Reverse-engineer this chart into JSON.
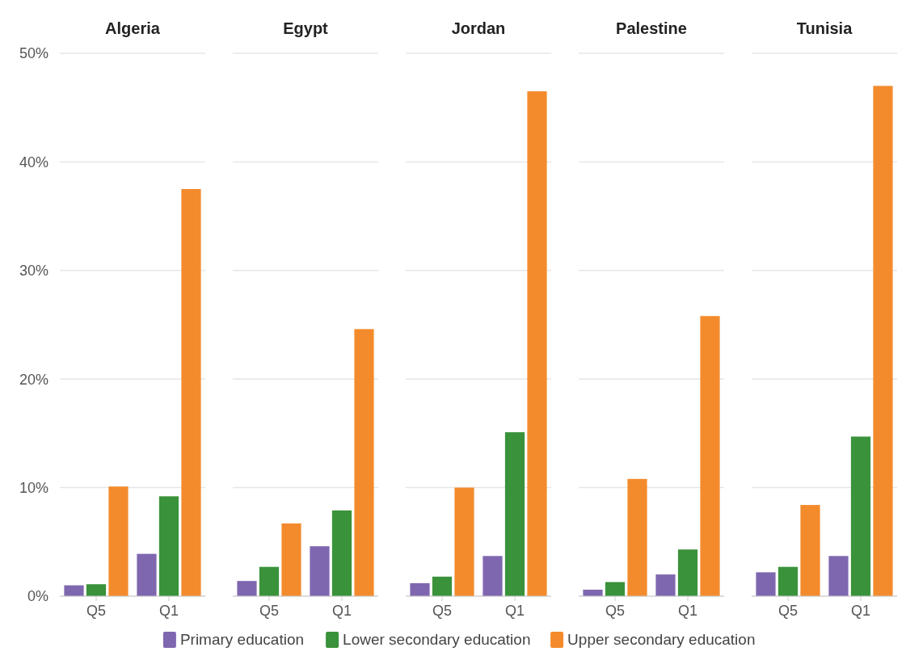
{
  "chart_data": [
    {
      "type": "bar",
      "title": "Algeria",
      "categories": [
        "Q5",
        "Q1"
      ],
      "series": [
        {
          "name": "Primary education",
          "color": "#7f67b0",
          "values": [
            1.0,
            3.9
          ]
        },
        {
          "name": "Lower secondary education",
          "color": "#3a923a",
          "values": [
            1.1,
            9.2
          ]
        },
        {
          "name": "Upper secondary education",
          "color": "#f38b2c",
          "values": [
            10.1,
            37.5
          ]
        }
      ],
      "ylim": [
        0,
        50
      ],
      "yticks": [
        {
          "value": 0,
          "label": "0%"
        },
        {
          "value": 10,
          "label": "10%"
        },
        {
          "value": 20,
          "label": "20%"
        },
        {
          "value": 30,
          "label": "30%"
        },
        {
          "value": 40,
          "label": "40%"
        },
        {
          "value": 50,
          "label": "50%"
        }
      ],
      "grid": "y",
      "legend": "bottom"
    },
    {
      "type": "bar",
      "title": "Egypt",
      "categories": [
        "Q5",
        "Q1"
      ],
      "series": [
        {
          "color": "#7f67b0",
          "values": [
            1.4,
            4.6
          ]
        },
        {
          "color": "#3a923a",
          "values": [
            2.7,
            7.9
          ]
        },
        {
          "color": "#f38b2c",
          "values": [
            6.7,
            24.6
          ]
        }
      ],
      "ylim": [
        0,
        50
      ],
      "yticks": [
        0,
        10,
        20,
        30,
        40,
        50
      ],
      "grid": "y",
      "tick_labels": "x"
    },
    {
      "type": "bar",
      "title": "Jordan",
      "categories": [
        "Q5",
        "Q1"
      ],
      "series": [
        {
          "color": "#7f67b0",
          "values": [
            1.2,
            3.7
          ]
        },
        {
          "color": "#3a923a",
          "values": [
            1.8,
            15.1
          ]
        },
        {
          "color": "#f38b2c",
          "values": [
            10.0,
            46.5
          ]
        }
      ],
      "ylim": [
        0,
        50
      ],
      "yticks": [
        0,
        10,
        20,
        30,
        40,
        50
      ],
      "grid": "y",
      "tick_labels": "x"
    },
    {
      "type": "bar",
      "title": "Palestine",
      "categories": [
        "Q5",
        "Q1"
      ],
      "series": [
        {
          "color": "#7f67b0",
          "values": [
            0.6,
            2.0
          ]
        },
        {
          "color": "#3a923a",
          "values": [
            1.3,
            4.3
          ]
        },
        {
          "color": "#f38b2c",
          "values": [
            10.8,
            25.8
          ]
        }
      ],
      "ylim": [
        0,
        50
      ],
      "yticks": [
        0,
        10,
        20,
        30,
        40,
        50
      ],
      "grid": "y",
      "tick_labels": "x"
    },
    {
      "type": "bar",
      "title": "Tunisia",
      "categories": [
        "Q5",
        "Q1"
      ],
      "series": [
        {
          "color": "#7f67b0",
          "values": [
            2.2,
            3.7
          ]
        },
        {
          "color": "#3a923a",
          "values": [
            2.7,
            14.7
          ]
        },
        {
          "color": "#f38b2c",
          "values": [
            8.4,
            47.0
          ]
        }
      ],
      "ylim": [
        0,
        50
      ],
      "yticks": [
        0,
        10,
        20,
        30,
        40,
        50
      ],
      "grid": "y",
      "tick_labels": "x"
    }
  ]
}
